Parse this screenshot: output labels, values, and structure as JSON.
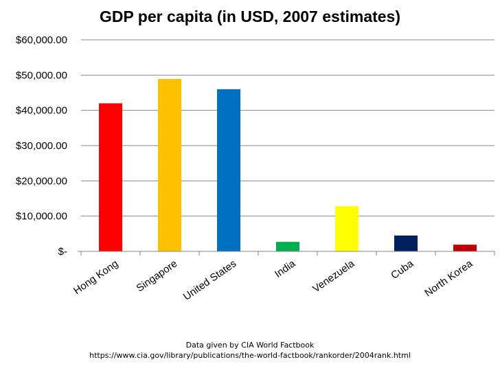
{
  "chart_data": {
    "type": "bar",
    "title": "GDP per capita (in USD, 2007 estimates)",
    "xlabel": "",
    "ylabel": "",
    "categories": [
      "Hong Kong",
      "Singapore",
      "United States",
      "India",
      "Venezuela",
      "Cuba",
      "North Korea"
    ],
    "values": [
      42000,
      48900,
      46000,
      2700,
      12800,
      4500,
      1900
    ],
    "bar_colors": [
      "#ff0000",
      "#ffc000",
      "#0070c0",
      "#00b050",
      "#ffff00",
      "#002060",
      "#c00000"
    ],
    "ylim": [
      0,
      60000
    ],
    "yticks": [
      0,
      10000,
      20000,
      30000,
      40000,
      50000,
      60000
    ],
    "ytick_labels": [
      "$-",
      "$10,000.00",
      "$20,000.00",
      "$30,000.00",
      "$40,000.00",
      "$50,000.00",
      "$60,000.00"
    ],
    "grid": true,
    "legend": "none"
  },
  "source": {
    "line1": "Data given by CIA World Factbook",
    "line2": "https://www.cia.gov/library/publications/the-world-factbook/rankorder/2004rank.html"
  }
}
